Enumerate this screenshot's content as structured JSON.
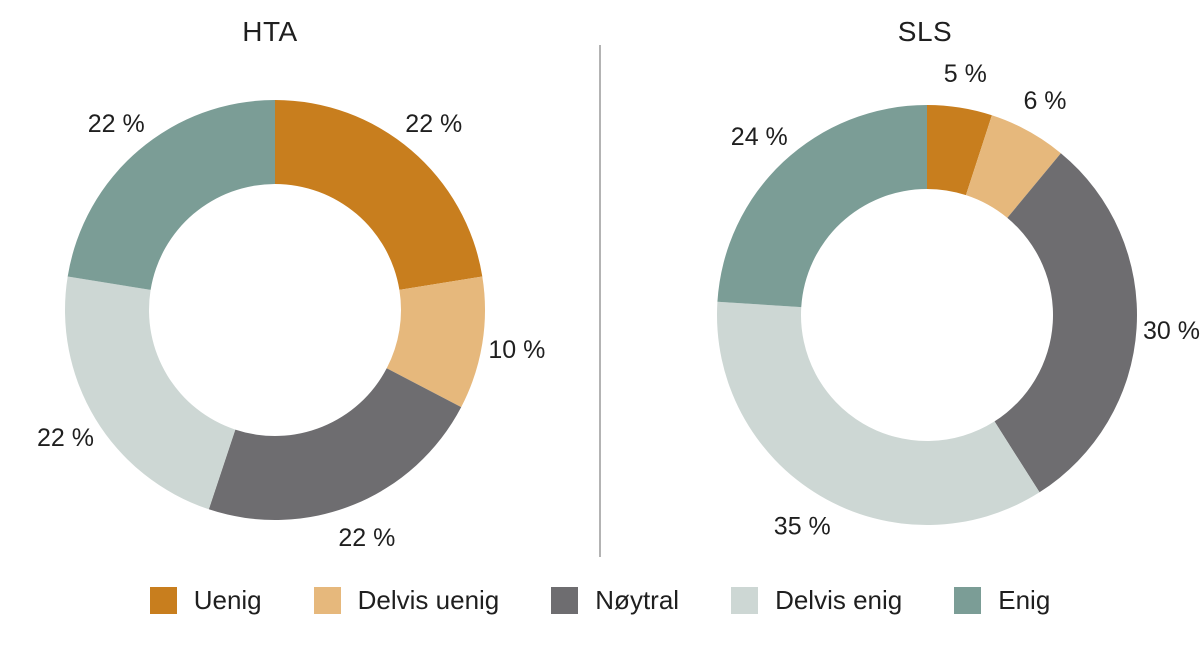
{
  "figure": {
    "background_color": "#ffffff",
    "text_color": "#1f1f1f",
    "divider_color": "#b3b3b3"
  },
  "palette": [
    "#c87e1e",
    "#e6b87c",
    "#6e6d70",
    "#cdd7d4",
    "#7b9d96"
  ],
  "chart_data": [
    {
      "type": "pie",
      "subtype": "donut",
      "title": "HTA",
      "categories": [
        "Uenig",
        "Delvis uenig",
        "Nøytral",
        "Delvis enig",
        "Enig"
      ],
      "values": [
        22,
        10,
        22,
        22,
        22
      ],
      "value_labels": [
        "22 %",
        "10 %",
        "22 %",
        "22 %",
        "22 %"
      ],
      "unit": "%",
      "start_angle_deg": -90,
      "direction": "clockwise",
      "inner_radius_ratio": 0.6,
      "grid": false,
      "legend_position": "bottom-shared"
    },
    {
      "type": "pie",
      "subtype": "donut",
      "title": "SLS",
      "categories": [
        "Uenig",
        "Delvis uenig",
        "Nøytral",
        "Delvis enig",
        "Enig"
      ],
      "values": [
        5,
        6,
        30,
        35,
        24
      ],
      "value_labels": [
        "5 %",
        "6 %",
        "30 %",
        "35 %",
        "24 %"
      ],
      "unit": "%",
      "start_angle_deg": -90,
      "direction": "clockwise",
      "inner_radius_ratio": 0.6,
      "grid": false,
      "legend_position": "bottom-shared"
    }
  ],
  "legend": {
    "items": [
      {
        "label": "Uenig",
        "color": "#c87e1e"
      },
      {
        "label": "Delvis uenig",
        "color": "#e6b87c"
      },
      {
        "label": "Nøytral",
        "color": "#6e6d70"
      },
      {
        "label": "Delvis enig",
        "color": "#cdd7d4"
      },
      {
        "label": "Enig",
        "color": "#7b9d96"
      }
    ]
  }
}
